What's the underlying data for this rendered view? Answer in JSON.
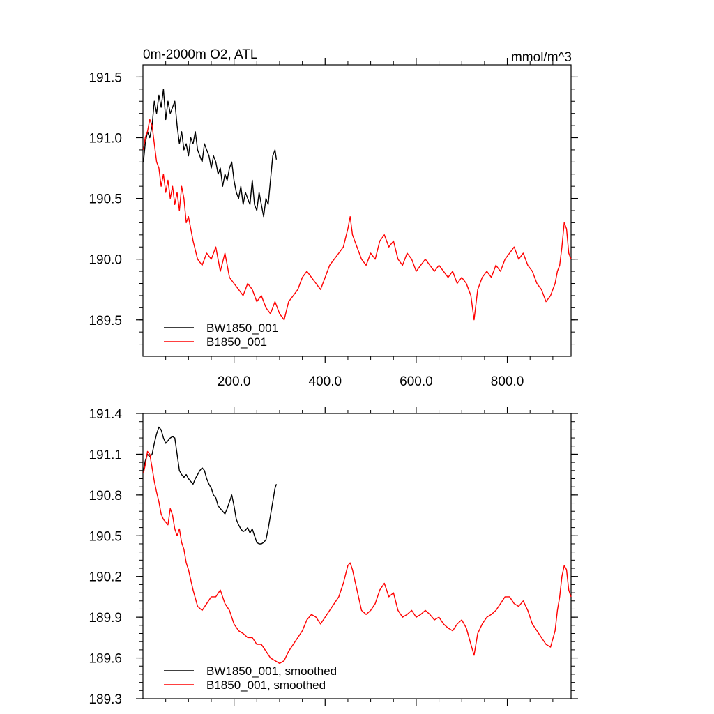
{
  "chart_data": [
    {
      "type": "line",
      "title_left": "0m-2000m O2, ATL",
      "title_right": "mmol/m^3",
      "xlim": [
        0,
        940
      ],
      "ylim": [
        189.2,
        191.6
      ],
      "x_ticks": [
        200,
        400,
        600,
        800
      ],
      "x_tick_labels": [
        "200.0",
        "400.0",
        "600.0",
        "800.0"
      ],
      "y_ticks": [
        189.5,
        190.0,
        190.5,
        191.0,
        191.5
      ],
      "y_tick_labels": [
        "189.5",
        "190.0",
        "190.5",
        "191.0",
        "191.5"
      ],
      "legend": {
        "position": "bottom-left"
      },
      "series": [
        {
          "name": "BW1850_001",
          "color": "#000000",
          "x": [
            1,
            5,
            10,
            15,
            20,
            25,
            30,
            35,
            40,
            45,
            50,
            55,
            60,
            65,
            70,
            75,
            80,
            85,
            90,
            95,
            100,
            105,
            110,
            115,
            120,
            125,
            130,
            135,
            140,
            145,
            150,
            155,
            160,
            165,
            170,
            175,
            180,
            185,
            190,
            195,
            200,
            205,
            210,
            215,
            220,
            225,
            230,
            235,
            240,
            245,
            250,
            255,
            260,
            265,
            270,
            275,
            280,
            285,
            290,
            293
          ],
          "values": [
            190.8,
            190.95,
            191.05,
            191.0,
            191.1,
            191.3,
            191.2,
            191.35,
            191.25,
            191.4,
            191.15,
            191.3,
            191.2,
            191.25,
            191.3,
            191.1,
            190.95,
            191.05,
            190.9,
            190.95,
            190.85,
            191.0,
            190.95,
            191.05,
            190.9,
            190.85,
            190.8,
            190.95,
            190.9,
            190.85,
            190.75,
            190.85,
            190.8,
            190.7,
            190.75,
            190.6,
            190.7,
            190.65,
            190.75,
            190.8,
            190.65,
            190.55,
            190.5,
            190.6,
            190.45,
            190.55,
            190.5,
            190.45,
            190.65,
            190.45,
            190.4,
            190.55,
            190.45,
            190.35,
            190.5,
            190.45,
            190.65,
            190.85,
            190.9,
            190.82
          ]
        },
        {
          "name": "B1850_001",
          "color": "#ff0000",
          "x": [
            1,
            5,
            10,
            15,
            20,
            25,
            30,
            35,
            40,
            45,
            50,
            55,
            60,
            65,
            70,
            75,
            80,
            85,
            90,
            95,
            100,
            110,
            120,
            130,
            140,
            150,
            160,
            170,
            180,
            190,
            200,
            210,
            220,
            230,
            240,
            250,
            260,
            270,
            280,
            290,
            300,
            310,
            320,
            330,
            340,
            350,
            360,
            370,
            380,
            390,
            400,
            410,
            420,
            430,
            440,
            450,
            455,
            460,
            470,
            480,
            490,
            500,
            510,
            520,
            530,
            540,
            550,
            560,
            570,
            580,
            590,
            600,
            610,
            620,
            630,
            640,
            650,
            660,
            670,
            680,
            690,
            700,
            710,
            720,
            727,
            735,
            745,
            755,
            765,
            775,
            785,
            795,
            805,
            815,
            825,
            835,
            845,
            855,
            865,
            875,
            885,
            895,
            905,
            910,
            915,
            920,
            925,
            930,
            935,
            940
          ],
          "values": [
            190.9,
            191.0,
            191.05,
            191.15,
            191.1,
            190.95,
            190.8,
            190.75,
            190.6,
            190.7,
            190.55,
            190.65,
            190.5,
            190.6,
            190.45,
            190.55,
            190.4,
            190.6,
            190.5,
            190.3,
            190.35,
            190.15,
            190.0,
            189.95,
            190.05,
            190.0,
            190.1,
            189.9,
            190.05,
            189.85,
            189.8,
            189.75,
            189.7,
            189.8,
            189.75,
            189.65,
            189.7,
            189.6,
            189.55,
            189.65,
            189.55,
            189.5,
            189.65,
            189.7,
            189.75,
            189.85,
            189.9,
            189.85,
            189.8,
            189.75,
            189.85,
            189.95,
            190.0,
            190.05,
            190.1,
            190.25,
            190.35,
            190.2,
            190.1,
            190.0,
            189.95,
            190.05,
            190.0,
            190.15,
            190.2,
            190.1,
            190.15,
            190.0,
            189.95,
            190.05,
            190.0,
            189.9,
            189.95,
            190.0,
            189.95,
            189.9,
            189.95,
            189.9,
            189.85,
            189.9,
            189.8,
            189.85,
            189.8,
            189.7,
            189.5,
            189.75,
            189.85,
            189.9,
            189.85,
            189.95,
            189.9,
            190.0,
            190.05,
            190.1,
            190.0,
            190.05,
            189.95,
            189.9,
            189.8,
            189.75,
            189.65,
            189.7,
            189.8,
            189.9,
            189.95,
            190.1,
            190.3,
            190.25,
            190.05,
            190.0
          ]
        }
      ]
    },
    {
      "type": "line",
      "xlim": [
        0,
        940
      ],
      "ylim": [
        189.3,
        191.4
      ],
      "x_ticks": [
        200,
        400,
        600,
        800
      ],
      "y_ticks": [
        189.3,
        189.6,
        189.9,
        190.2,
        190.5,
        190.8,
        191.1,
        191.4
      ],
      "y_tick_labels": [
        "189.3",
        "189.6",
        "189.9",
        "190.2",
        "190.5",
        "190.8",
        "191.1",
        "191.4"
      ],
      "legend": {
        "position": "bottom-left"
      },
      "series": [
        {
          "name": "BW1850_001, smoothed",
          "color": "#000000",
          "x": [
            1,
            5,
            10,
            15,
            20,
            25,
            30,
            35,
            40,
            45,
            50,
            55,
            60,
            65,
            70,
            75,
            80,
            85,
            90,
            95,
            100,
            105,
            110,
            115,
            120,
            125,
            130,
            135,
            140,
            145,
            150,
            155,
            160,
            165,
            170,
            175,
            180,
            185,
            190,
            195,
            200,
            205,
            210,
            215,
            220,
            225,
            230,
            235,
            240,
            245,
            250,
            255,
            260,
            265,
            270,
            275,
            280,
            285,
            290,
            293
          ],
          "values": [
            190.98,
            191.05,
            191.1,
            191.08,
            191.1,
            191.18,
            191.25,
            191.3,
            191.28,
            191.22,
            191.18,
            191.2,
            191.22,
            191.23,
            191.22,
            191.1,
            190.98,
            190.95,
            190.93,
            190.95,
            190.92,
            190.9,
            190.88,
            190.92,
            190.95,
            190.98,
            191.0,
            190.98,
            190.92,
            190.88,
            190.85,
            190.8,
            190.78,
            190.72,
            190.7,
            190.68,
            190.66,
            190.7,
            190.75,
            190.8,
            190.72,
            190.62,
            190.58,
            190.55,
            190.53,
            190.54,
            190.56,
            190.52,
            190.55,
            190.5,
            190.45,
            190.44,
            190.44,
            190.45,
            190.47,
            190.55,
            190.65,
            190.75,
            190.85,
            190.88
          ]
        },
        {
          "name": "B1850_001, smoothed",
          "color": "#ff0000",
          "x": [
            1,
            5,
            10,
            15,
            20,
            25,
            30,
            35,
            40,
            45,
            50,
            55,
            60,
            65,
            70,
            75,
            80,
            85,
            90,
            95,
            100,
            110,
            120,
            130,
            140,
            150,
            160,
            170,
            180,
            190,
            200,
            210,
            220,
            230,
            240,
            250,
            260,
            270,
            280,
            290,
            300,
            310,
            320,
            330,
            340,
            350,
            360,
            370,
            380,
            390,
            400,
            410,
            420,
            430,
            440,
            450,
            455,
            460,
            470,
            480,
            490,
            500,
            510,
            520,
            530,
            540,
            550,
            560,
            570,
            580,
            590,
            600,
            610,
            620,
            630,
            640,
            650,
            660,
            670,
            680,
            690,
            700,
            710,
            720,
            727,
            735,
            745,
            755,
            765,
            775,
            785,
            795,
            805,
            815,
            825,
            835,
            845,
            855,
            865,
            875,
            885,
            895,
            905,
            910,
            915,
            920,
            925,
            930,
            935,
            940
          ],
          "values": [
            190.96,
            191.02,
            191.12,
            191.1,
            191.0,
            190.9,
            190.82,
            190.75,
            190.66,
            190.62,
            190.6,
            190.58,
            190.7,
            190.65,
            190.55,
            190.5,
            190.55,
            190.45,
            190.4,
            190.3,
            190.25,
            190.1,
            189.98,
            189.95,
            190.0,
            190.05,
            190.05,
            190.1,
            190.0,
            189.95,
            189.85,
            189.8,
            189.78,
            189.75,
            189.75,
            189.7,
            189.7,
            189.65,
            189.6,
            189.58,
            189.56,
            189.58,
            189.65,
            189.7,
            189.75,
            189.8,
            189.88,
            189.92,
            189.9,
            189.85,
            189.9,
            189.95,
            190.0,
            190.05,
            190.15,
            190.28,
            190.3,
            190.25,
            190.1,
            189.95,
            189.92,
            189.95,
            190.0,
            190.1,
            190.15,
            190.05,
            190.08,
            189.95,
            189.9,
            189.92,
            189.95,
            189.9,
            189.92,
            189.95,
            189.92,
            189.88,
            189.9,
            189.85,
            189.82,
            189.8,
            189.85,
            189.88,
            189.82,
            189.7,
            189.62,
            189.78,
            189.85,
            189.9,
            189.92,
            189.95,
            190.0,
            190.05,
            190.05,
            190.0,
            189.98,
            190.02,
            189.95,
            189.85,
            189.8,
            189.75,
            189.7,
            189.68,
            189.8,
            189.95,
            190.05,
            190.2,
            190.28,
            190.25,
            190.1,
            190.05
          ]
        }
      ]
    }
  ]
}
